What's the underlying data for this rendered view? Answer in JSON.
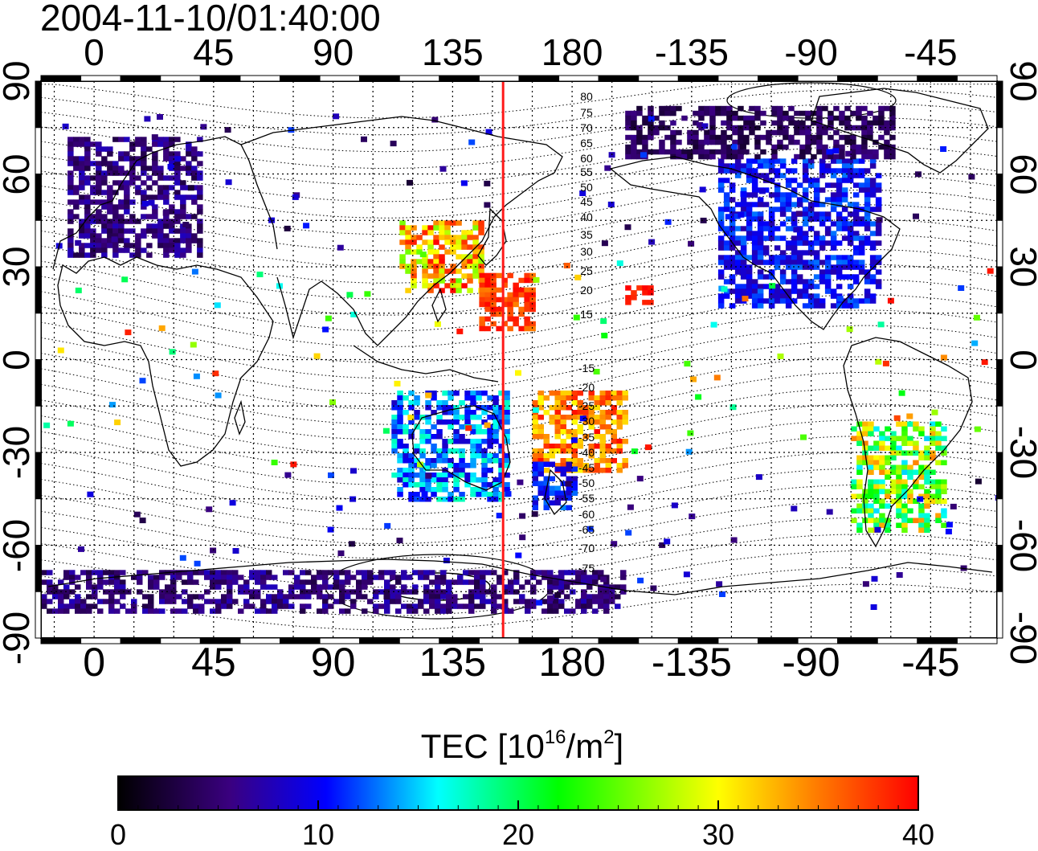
{
  "title": "2004-11-10/01:40:00",
  "map": {
    "longitude_ticks": [
      "0",
      "45",
      "90",
      "135",
      "180",
      "-135",
      "-90",
      "-45"
    ],
    "latitude_ticks": [
      "90",
      "60",
      "30",
      "0",
      "-30",
      "-60",
      "-90"
    ],
    "contour_labels_north": [
      "80",
      "75",
      "70",
      "65",
      "60",
      "55",
      "50",
      "45",
      "40",
      "35",
      "30",
      "25",
      "20",
      "15"
    ],
    "contour_labels_south": [
      "-15",
      "-20",
      "-25",
      "-30",
      "-35",
      "-40",
      "-45",
      "-50",
      "-55",
      "-60",
      "-65",
      "-70",
      "-75"
    ],
    "red_meridian_longitude": 154,
    "colors": {
      "frame": "#000000",
      "grid": "#000000",
      "coast": "#000000",
      "meridian": "#ff1a1a"
    }
  },
  "colorbar": {
    "title_text": "TEC  [10",
    "title_exp1": "16",
    "title_mid": "/m",
    "title_exp2": "2",
    "title_end": "]",
    "min": 0,
    "max": 40,
    "ticks": [
      "0",
      "10",
      "20",
      "30",
      "40"
    ],
    "colormap": [
      "#000000",
      "#3a0080",
      "#0000ff",
      "#00ffff",
      "#00ff00",
      "#ffff00",
      "#ff0000"
    ]
  },
  "tec_regions": [
    {
      "name": "europe",
      "lon": [
        -10,
        40
      ],
      "lat": [
        34,
        72
      ],
      "tec": [
        3,
        8
      ]
    },
    {
      "name": "north-america",
      "lon": [
        -125,
        -65
      ],
      "lat": [
        18,
        65
      ],
      "tec": [
        7,
        13
      ]
    },
    {
      "name": "arctic-north-america",
      "lon": [
        -160,
        -60
      ],
      "lat": [
        65,
        82
      ],
      "tec": [
        2,
        6
      ]
    },
    {
      "name": "japan-china",
      "lon": [
        115,
        145
      ],
      "lat": [
        22,
        45
      ],
      "tec": [
        25,
        40
      ]
    },
    {
      "name": "pacific-north",
      "lon": [
        145,
        165
      ],
      "lat": [
        10,
        28
      ],
      "tec": [
        35,
        40
      ]
    },
    {
      "name": "hawaii",
      "lon": [
        -160,
        -150
      ],
      "lat": [
        18,
        24
      ],
      "tec": [
        38,
        40
      ]
    },
    {
      "name": "south-pacific",
      "lon": [
        165,
        200
      ],
      "lat": [
        -35,
        -10
      ],
      "tec": [
        30,
        40
      ]
    },
    {
      "name": "australia",
      "lon": [
        112,
        155
      ],
      "lat": [
        -45,
        -10
      ],
      "tec": [
        8,
        18
      ]
    },
    {
      "name": "new-zealand",
      "lon": [
        165,
        180
      ],
      "lat": [
        -48,
        -33
      ],
      "tec": [
        7,
        14
      ]
    },
    {
      "name": "south-america",
      "lon": [
        -75,
        -40
      ],
      "lat": [
        -55,
        -20
      ],
      "tec": [
        15,
        35
      ]
    },
    {
      "name": "antarctica",
      "lon": [
        -20,
        200
      ],
      "lat": [
        -82,
        -68
      ],
      "tec": [
        3,
        8
      ]
    }
  ]
}
